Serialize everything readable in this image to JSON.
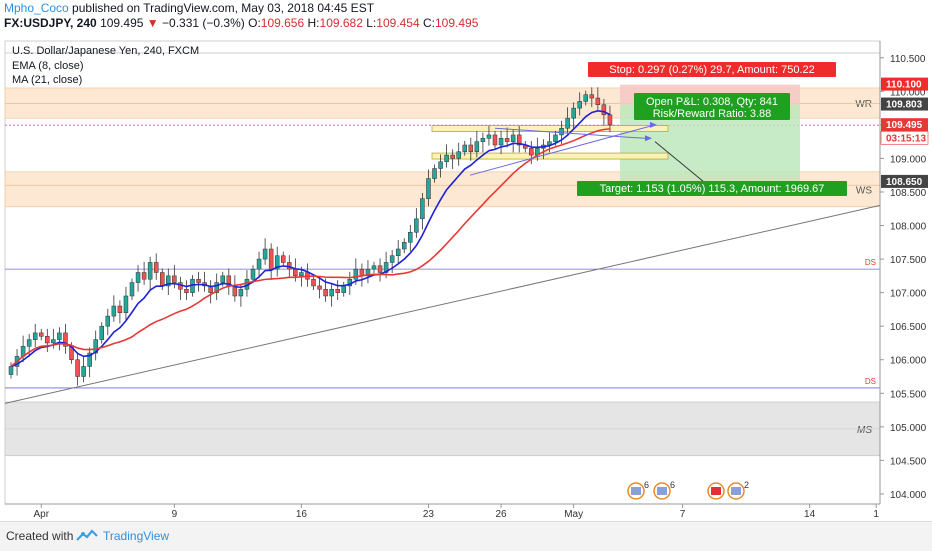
{
  "header": {
    "author": "Mpho_Coco",
    "published_text": " published on TradingView.com, May 03, 2018 04:45 EST",
    "symbol": "FX:USDJPY, 240",
    "last": "109.495",
    "change": "−0.331 (−0.3%)",
    "o_label": "O:",
    "o_value": "109.656",
    "h_label": "H:",
    "h_value": "109.682",
    "l_label": "L:",
    "l_value": "109.454",
    "c_label": "C:",
    "c_value": "109.495"
  },
  "legend": {
    "title": "U.S. Dollar/Japanese Yen, 240, FXCM",
    "ema": "EMA (8, close)",
    "ma": "MA (21, close)"
  },
  "footer": {
    "created_with": "Created with",
    "brand": "TradingView"
  },
  "colors": {
    "candle_up": "#26a69a",
    "candle_down": "#ef5350",
    "ema": "#1e22d6",
    "ma": "#e53935",
    "zone": "#fde9d3",
    "ms_zone": "#e5e5e5",
    "stop_box": "#f4c7c3",
    "target_box": "#b9e6b9",
    "stop_label": "#ef2b2b",
    "target_label": "#20a020",
    "trend_line": "#777777",
    "level_line": "#6a6ae0"
  },
  "chart_data": {
    "type": "candlestick",
    "title": "U.S. Dollar/Japanese Yen, 240, FXCM",
    "ylim": [
      103.85,
      110.75
    ],
    "y_ticks": [
      "110.500",
      "110.000",
      "109.500",
      "109.000",
      "108.500",
      "108.000",
      "107.500",
      "107.000",
      "106.500",
      "106.000",
      "105.500",
      "105.000",
      "104.500",
      "104.000"
    ],
    "y_tick_values": [
      110.5,
      110.0,
      109.5,
      109.0,
      108.5,
      108.0,
      107.5,
      107.0,
      106.5,
      106.0,
      105.5,
      105.0,
      104.5,
      104.0
    ],
    "x_ticks": [
      {
        "label": "Apr",
        "i": 5
      },
      {
        "label": "9",
        "i": 27
      },
      {
        "label": "16",
        "i": 48
      },
      {
        "label": "23",
        "i": 69
      },
      {
        "label": "26",
        "i": 81
      },
      {
        "label": "May",
        "i": 93
      },
      {
        "label": "7",
        "i": 111
      },
      {
        "label": "14",
        "i": 132
      },
      {
        "label": "1",
        "i": 143
      }
    ],
    "closes": [
      105.9,
      106.05,
      106.2,
      106.3,
      106.4,
      106.35,
      106.25,
      106.3,
      106.4,
      106.2,
      106.0,
      105.75,
      105.9,
      106.1,
      106.3,
      106.5,
      106.65,
      106.8,
      106.7,
      106.95,
      107.15,
      107.3,
      107.2,
      107.45,
      107.3,
      107.1,
      107.25,
      107.15,
      107.05,
      107.0,
      107.2,
      107.15,
      107.1,
      107.0,
      107.15,
      107.25,
      107.1,
      106.95,
      107.05,
      107.2,
      107.35,
      107.5,
      107.65,
      107.35,
      107.55,
      107.45,
      107.35,
      107.25,
      107.3,
      107.2,
      107.1,
      107.05,
      106.95,
      107.05,
      107.0,
      107.1,
      107.2,
      107.35,
      107.25,
      107.35,
      107.4,
      107.3,
      107.45,
      107.55,
      107.65,
      107.75,
      107.9,
      108.1,
      108.4,
      108.7,
      108.85,
      108.95,
      109.05,
      109.0,
      109.1,
      109.2,
      109.1,
      109.25,
      109.3,
      109.35,
      109.2,
      109.3,
      109.25,
      109.35,
      109.2,
      109.15,
      109.05,
      109.15,
      109.2,
      109.25,
      109.35,
      109.45,
      109.6,
      109.75,
      109.85,
      109.95,
      109.9,
      109.8,
      109.65,
      109.5
    ],
    "last_index": 99,
    "horizontal_levels": [
      {
        "label": "DS",
        "value": 107.35
      },
      {
        "label": "DS",
        "value": 105.58
      }
    ],
    "zones": [
      {
        "label": "WR",
        "from": 109.6,
        "to": 110.05
      },
      {
        "label": "WS",
        "from": 108.28,
        "to": 108.8
      },
      {
        "label": "MS",
        "from": 104.57,
        "to": 105.37
      }
    ],
    "price_tags": [
      {
        "text": "110.100",
        "value": 110.1,
        "color": "#ef2b2b"
      },
      {
        "text": "109.803",
        "value": 109.803,
        "color": "#444444"
      },
      {
        "text": "109.495",
        "value": 109.495,
        "color": "#e53935"
      },
      {
        "text": "03:15:13",
        "value": 109.3,
        "color": "#e53935",
        "light": true
      },
      {
        "text": "108.650",
        "value": 108.65,
        "color": "#444444"
      }
    ],
    "position": {
      "entry": 109.803,
      "stop": 110.1,
      "target": 108.65,
      "stop_text": "Stop: 0.297 (0.27%) 29.7, Amount: 750.22",
      "pnl_text": "Open P&L: 0.308, Qty: 841",
      "rr_text": "Risk/Reward Ratio: 3.88",
      "target_text": "Target: 1.153 (1.05%) 115.3, Amount: 1969.67"
    },
    "events": [
      {
        "count": "6"
      },
      {
        "count": "6"
      },
      {
        "count": ""
      },
      {
        "count": "2"
      }
    ]
  }
}
